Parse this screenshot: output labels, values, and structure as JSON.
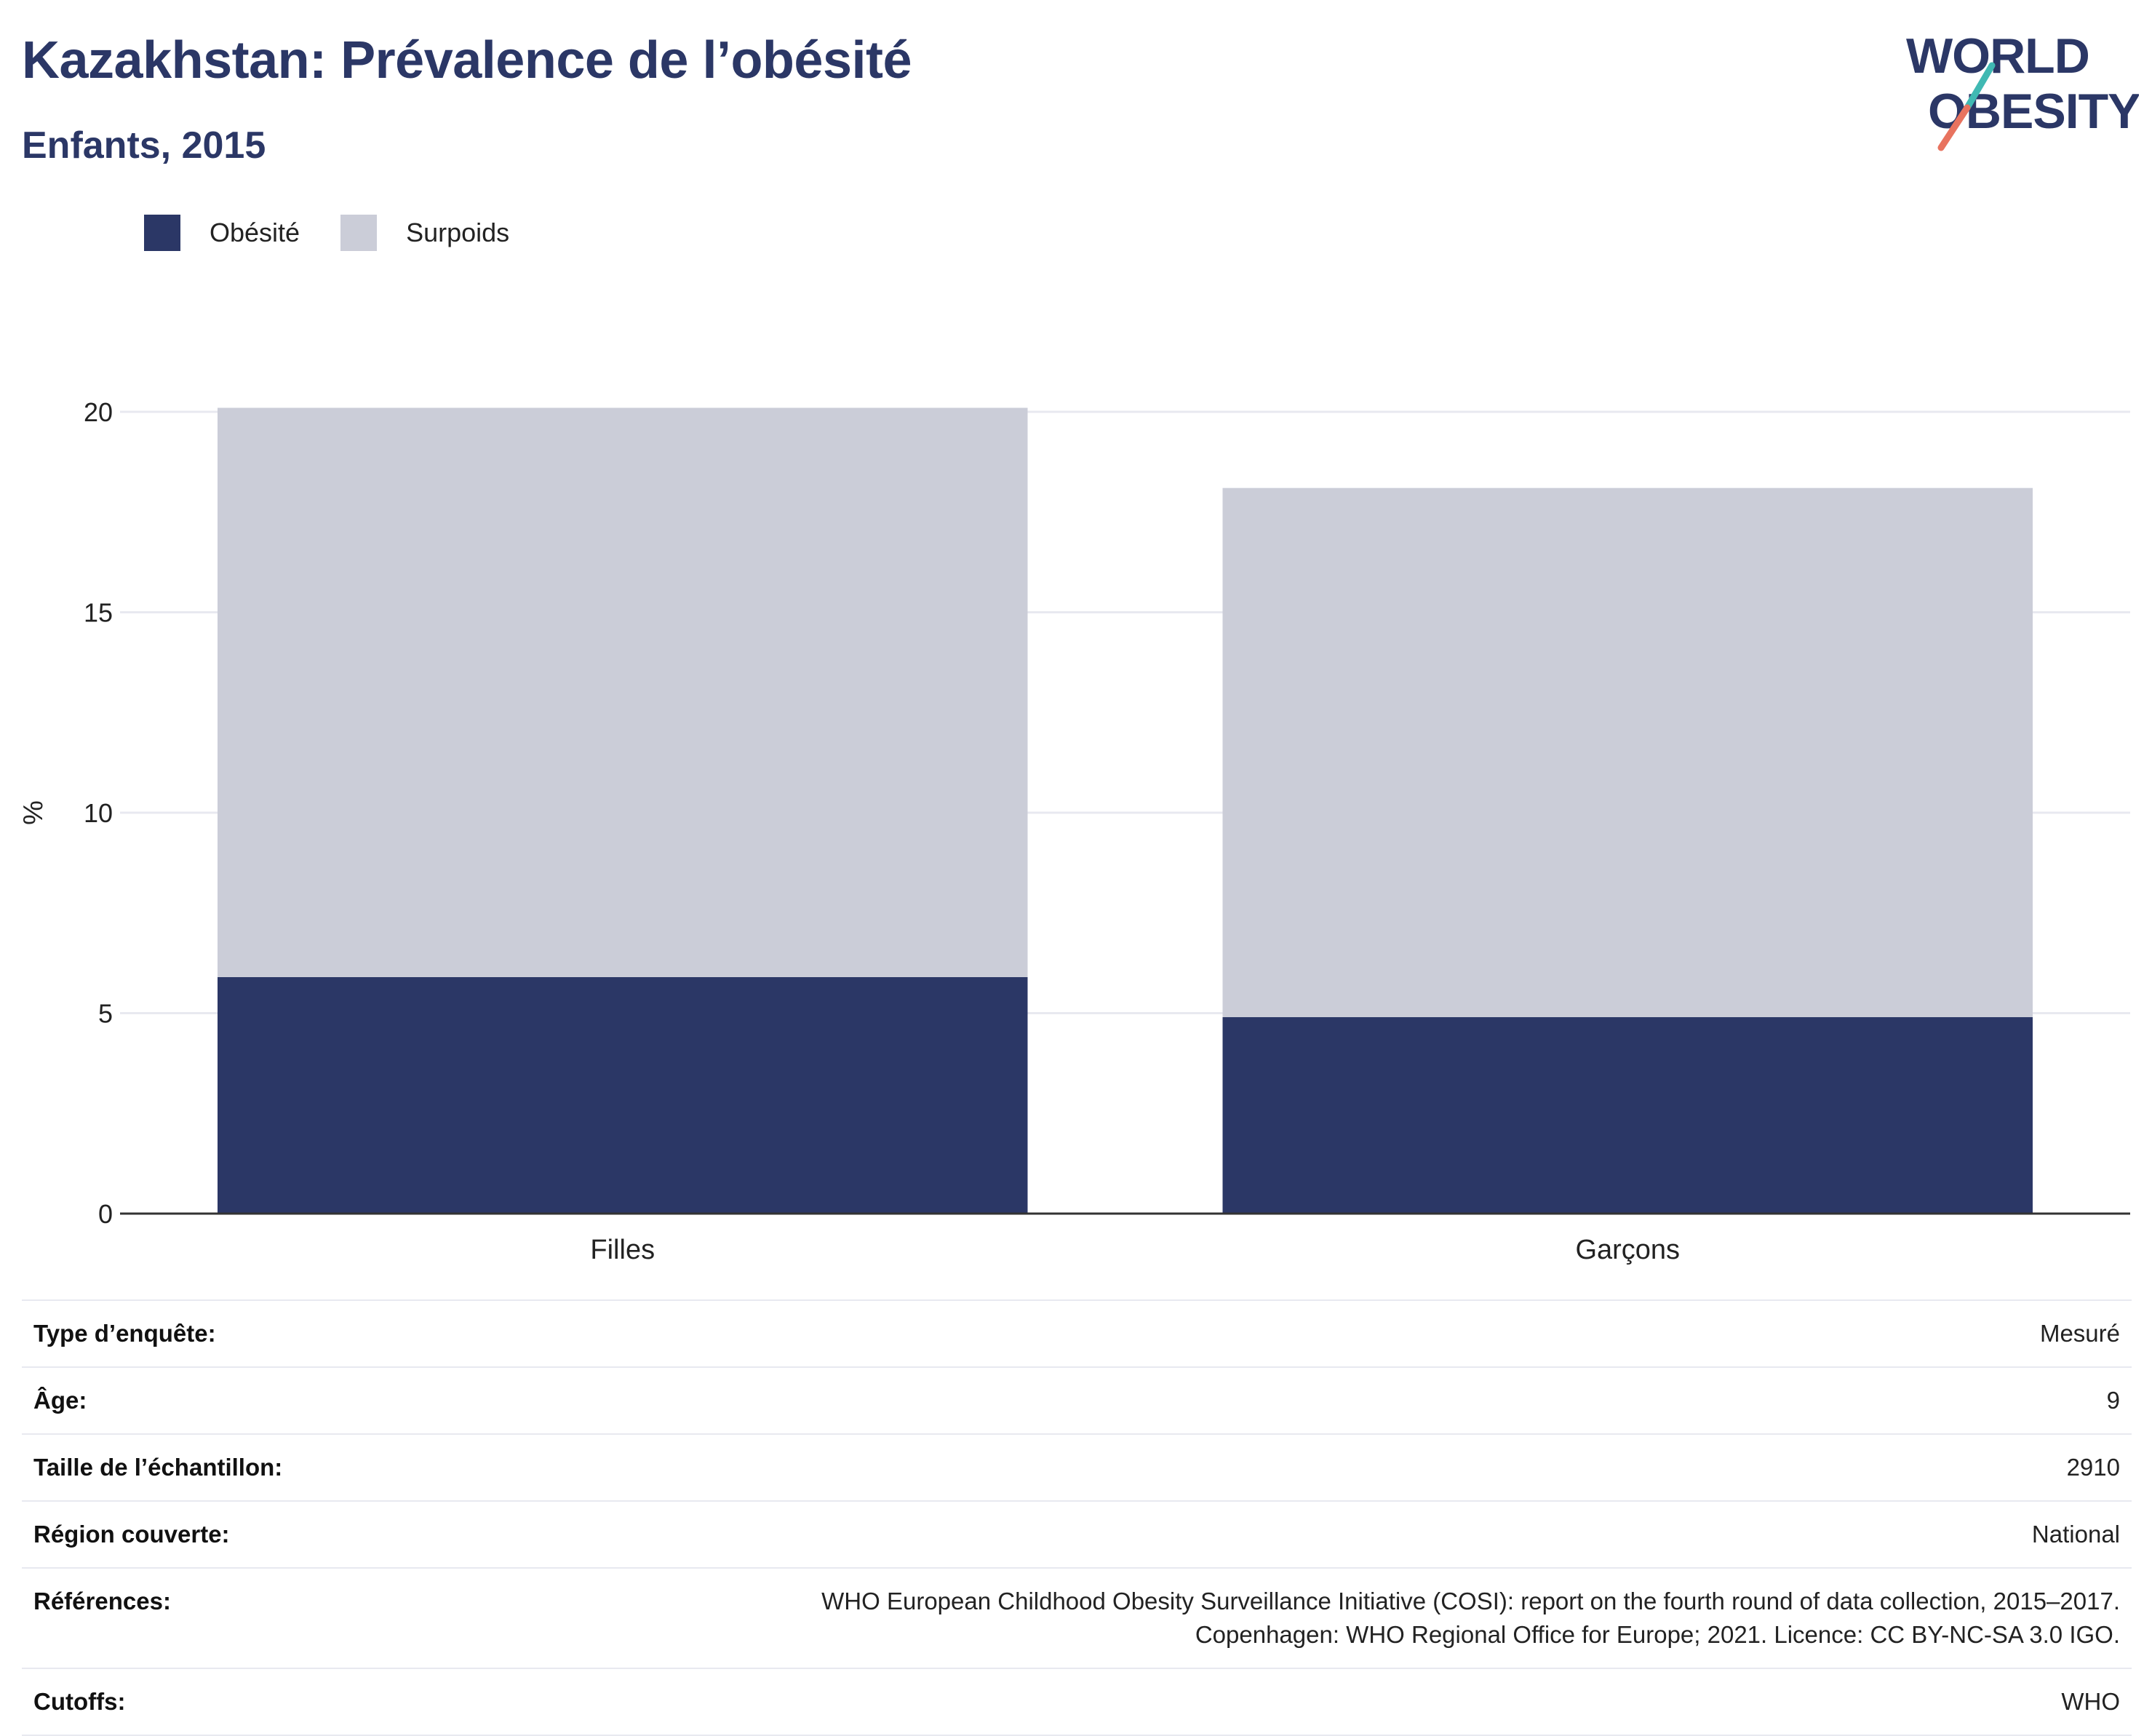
{
  "header": {
    "title": "Kazakhstan: Prévalence de l’obésité",
    "subtitle": "Enfants, 2015"
  },
  "logo": {
    "line1": "WORLD",
    "line2": "OBESITY"
  },
  "colors": {
    "obesity": "#2b3766",
    "overweight": "#cbcdd8",
    "axis": "#333333",
    "grid": "#e8e9f0"
  },
  "legend": [
    {
      "label": "Obésité",
      "color": "#2b3766"
    },
    {
      "label": "Surpoids",
      "color": "#cbcdd8"
    }
  ],
  "chart_data": {
    "type": "bar",
    "stacked": true,
    "categories": [
      "Filles",
      "Garçons"
    ],
    "series": [
      {
        "name": "Obésité",
        "values": [
          5.9,
          4.9
        ]
      },
      {
        "name": "Surpoids",
        "values": [
          14.2,
          13.2
        ]
      }
    ],
    "ylabel": "%",
    "xlabel": "",
    "ylim": [
      0,
      20
    ],
    "yticks": [
      0,
      5,
      10,
      15,
      20
    ],
    "grid": true
  },
  "meta": [
    {
      "key": "Type d’enquête:",
      "value": "Mesuré"
    },
    {
      "key": "Âge:",
      "value": "9"
    },
    {
      "key": "Taille de l’échantillon:",
      "value": "2910"
    },
    {
      "key": "Région couverte:",
      "value": "National"
    },
    {
      "key": "Références:",
      "value": "WHO European Childhood Obesity Surveillance Initiative (COSI): report on the fourth round of data collection, 2015–2017. Copenhagen: WHO Regional Office for Europe; 2021. Licence: CC BY-NC-SA 3.0 IGO."
    },
    {
      "key": "Cutoffs:",
      "value": "WHO"
    }
  ]
}
